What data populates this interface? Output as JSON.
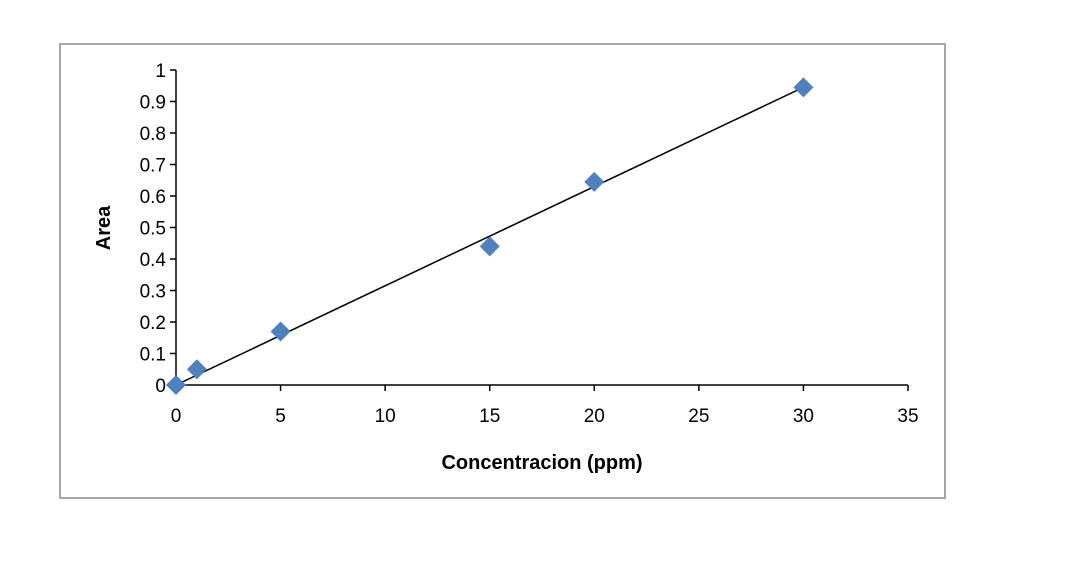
{
  "chart_data": {
    "type": "scatter",
    "title": "",
    "xlabel": "Concentracion (ppm)",
    "ylabel": "Area",
    "xlim": [
      0,
      35
    ],
    "ylim": [
      0,
      1
    ],
    "xticks": [
      "0",
      "5",
      "10",
      "15",
      "20",
      "25",
      "30",
      "35"
    ],
    "yticks": [
      "0",
      "0.1",
      "0.2",
      "0.3",
      "0.4",
      "0.5",
      "0.6",
      "0.7",
      "0.8",
      "0.9",
      "1"
    ],
    "grid": false,
    "legend": "none",
    "series": [
      {
        "x": [
          0,
          1,
          5,
          15,
          20,
          30
        ],
        "y": [
          0.0,
          0.05,
          0.17,
          0.44,
          0.645,
          0.945
        ],
        "marker": "diamond",
        "color": "#4f81bd"
      }
    ],
    "trendline": {
      "type": "linear",
      "from": [
        0,
        0
      ],
      "to": [
        30,
        0.945
      ],
      "color": "#000000"
    }
  }
}
